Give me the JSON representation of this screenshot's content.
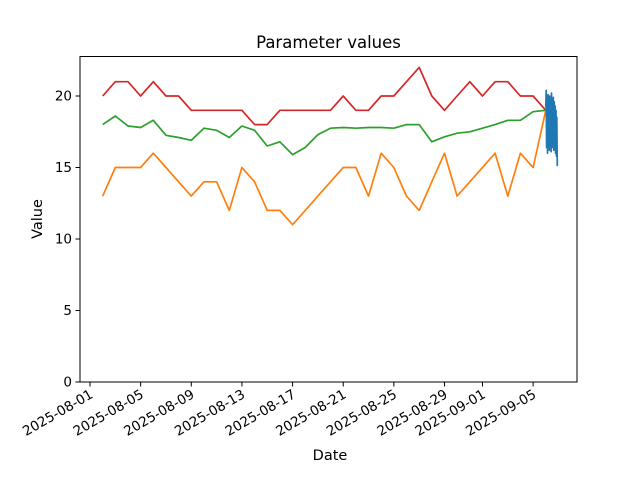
{
  "figure": {
    "title": "Parameter values",
    "xlabel": "Date",
    "ylabel": "Value"
  },
  "chart_data": {
    "type": "line",
    "title": "Parameter values",
    "xlabel": "Date",
    "ylabel": "Value",
    "grid": false,
    "legend": "none",
    "ylim": [
      0,
      22.8
    ],
    "y_tick_values": [
      0,
      5,
      10,
      15,
      20
    ],
    "y_tick_labels": [
      "0",
      "5",
      "10",
      "15",
      "20"
    ],
    "x_tick_labels": [
      "2025-08-01",
      "2025-08-05",
      "2025-08-09",
      "2025-08-13",
      "2025-08-17",
      "2025-08-21",
      "2025-08-25",
      "2025-08-29",
      "2025-09-01",
      "2025-09-05"
    ],
    "x_start_date": "2025-08-02",
    "dates": [
      "2025-08-02",
      "2025-08-03",
      "2025-08-04",
      "2025-08-05",
      "2025-08-06",
      "2025-08-07",
      "2025-08-08",
      "2025-08-09",
      "2025-08-10",
      "2025-08-11",
      "2025-08-12",
      "2025-08-13",
      "2025-08-14",
      "2025-08-15",
      "2025-08-16",
      "2025-08-17",
      "2025-08-18",
      "2025-08-19",
      "2025-08-20",
      "2025-08-21",
      "2025-08-22",
      "2025-08-23",
      "2025-08-24",
      "2025-08-25",
      "2025-08-26",
      "2025-08-27",
      "2025-08-28",
      "2025-08-29",
      "2025-08-30",
      "2025-08-31",
      "2025-09-01",
      "2025-09-02",
      "2025-09-03",
      "2025-09-04",
      "2025-09-05",
      "2025-09-06"
    ],
    "series": [
      {
        "name": "red-series",
        "color": "#d62728",
        "values": [
          20,
          21,
          21,
          20,
          21,
          20,
          20,
          19,
          19,
          19,
          19,
          19,
          18,
          18,
          19,
          19,
          19,
          19,
          19,
          20,
          19,
          19,
          20,
          20,
          21,
          22,
          20,
          19,
          20,
          21,
          20,
          21,
          21,
          20,
          20,
          19
        ]
      },
      {
        "name": "green-series",
        "color": "#2ca02c",
        "values": [
          18.0,
          18.6,
          17.9,
          17.8,
          18.3,
          17.25,
          17.1,
          16.9,
          17.75,
          17.6,
          17.1,
          17.9,
          17.6,
          16.5,
          16.8,
          15.9,
          16.4,
          17.3,
          17.75,
          17.8,
          17.75,
          17.8,
          17.8,
          17.75,
          18.0,
          18.0,
          16.8,
          17.15,
          17.4,
          17.5,
          17.75,
          18.0,
          18.3,
          18.3,
          18.9,
          19.0
        ]
      },
      {
        "name": "orange-series",
        "color": "#ff7f0e",
        "values": [
          13,
          15,
          15,
          15,
          16,
          15,
          14,
          13,
          14,
          14,
          12,
          15,
          14,
          12,
          12,
          11,
          12,
          13,
          14,
          15,
          15,
          13,
          16,
          15,
          13,
          12,
          14,
          16,
          13,
          14,
          15,
          16,
          13,
          16,
          15,
          19
        ]
      }
    ],
    "burst_series": {
      "name": "blue-burst-series",
      "color": "#1f77b4",
      "start_date": "2025-09-06",
      "day_fraction_step": 0.035,
      "values": [
        19.2,
        20.4,
        16.4,
        19.9,
        16.0,
        20.1,
        16.5,
        19.6,
        16.2,
        20.0,
        16.6,
        19.8,
        16.1,
        20.2,
        16.4,
        19.5,
        16.8,
        19.9,
        16.2,
        19.6,
        16.5,
        19.3,
        16.0,
        19.0,
        15.8,
        18.5,
        15.1
      ]
    }
  }
}
